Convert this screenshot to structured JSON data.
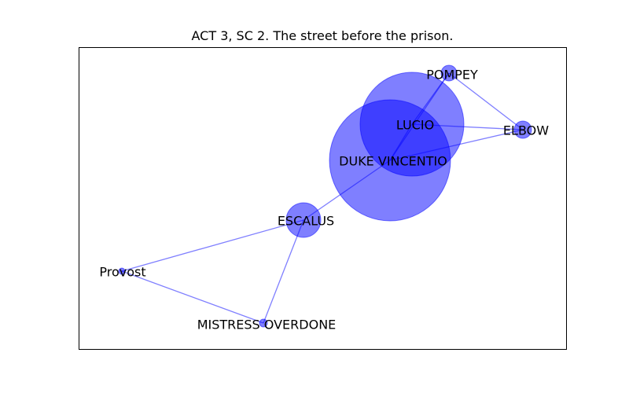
{
  "title": "ACT 3, SC 2. The street before the prison.",
  "colors": {
    "node_fill": "#0000ff",
    "edge": "#0000ff",
    "frame": "#000000",
    "background": "#ffffff"
  },
  "nodes": [
    {
      "id": "duke",
      "label": "DUKE VINCENTIO"
    },
    {
      "id": "lucio",
      "label": "LUCIO"
    },
    {
      "id": "escalus",
      "label": "ESCALUS"
    },
    {
      "id": "elbow",
      "label": "ELBOW"
    },
    {
      "id": "pompey",
      "label": "POMPEY"
    },
    {
      "id": "provost",
      "label": "Provost"
    },
    {
      "id": "overdone",
      "label": "MISTRESS OVERDONE"
    }
  ],
  "edges": [
    {
      "source": "duke",
      "target": "lucio"
    },
    {
      "source": "duke",
      "target": "pompey"
    },
    {
      "source": "duke",
      "target": "elbow"
    },
    {
      "source": "duke",
      "target": "escalus"
    },
    {
      "source": "lucio",
      "target": "pompey"
    },
    {
      "source": "lucio",
      "target": "elbow"
    },
    {
      "source": "pompey",
      "target": "elbow"
    },
    {
      "source": "escalus",
      "target": "provost"
    },
    {
      "source": "escalus",
      "target": "overdone"
    },
    {
      "source": "provost",
      "target": "overdone"
    }
  ]
}
